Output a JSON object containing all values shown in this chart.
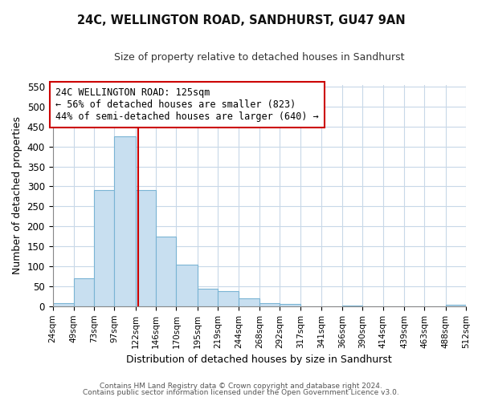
{
  "title": "24C, WELLINGTON ROAD, SANDHURST, GU47 9AN",
  "subtitle": "Size of property relative to detached houses in Sandhurst",
  "xlabel": "Distribution of detached houses by size in Sandhurst",
  "ylabel": "Number of detached properties",
  "bar_edges": [
    24,
    49,
    73,
    97,
    122,
    146,
    170,
    195,
    219,
    244,
    268,
    292,
    317,
    341,
    366,
    390,
    414,
    439,
    463,
    488,
    512
  ],
  "bar_heights": [
    7,
    70,
    291,
    425,
    291,
    175,
    105,
    43,
    38,
    20,
    7,
    5,
    0,
    0,
    2,
    0,
    0,
    0,
    0,
    3
  ],
  "bar_color": "#c8dff0",
  "bar_edge_color": "#7ab4d4",
  "vline_x": 125,
  "vline_color": "#cc0000",
  "annotation_title": "24C WELLINGTON ROAD: 125sqm",
  "annotation_line1": "← 56% of detached houses are smaller (823)",
  "annotation_line2": "44% of semi-detached houses are larger (640) →",
  "annotation_box_color": "#ffffff",
  "annotation_box_edge": "#cc0000",
  "ylim": [
    0,
    555
  ],
  "yticks": [
    0,
    50,
    100,
    150,
    200,
    250,
    300,
    350,
    400,
    450,
    500,
    550
  ],
  "tick_labels": [
    "24sqm",
    "49sqm",
    "73sqm",
    "97sqm",
    "122sqm",
    "146sqm",
    "170sqm",
    "195sqm",
    "219sqm",
    "244sqm",
    "268sqm",
    "292sqm",
    "317sqm",
    "341sqm",
    "366sqm",
    "390sqm",
    "414sqm",
    "439sqm",
    "463sqm",
    "488sqm",
    "512sqm"
  ],
  "footer1": "Contains HM Land Registry data © Crown copyright and database right 2024.",
  "footer2": "Contains public sector information licensed under the Open Government Licence v3.0.",
  "bg_color": "#ffffff",
  "grid_color": "#c8d8e8"
}
